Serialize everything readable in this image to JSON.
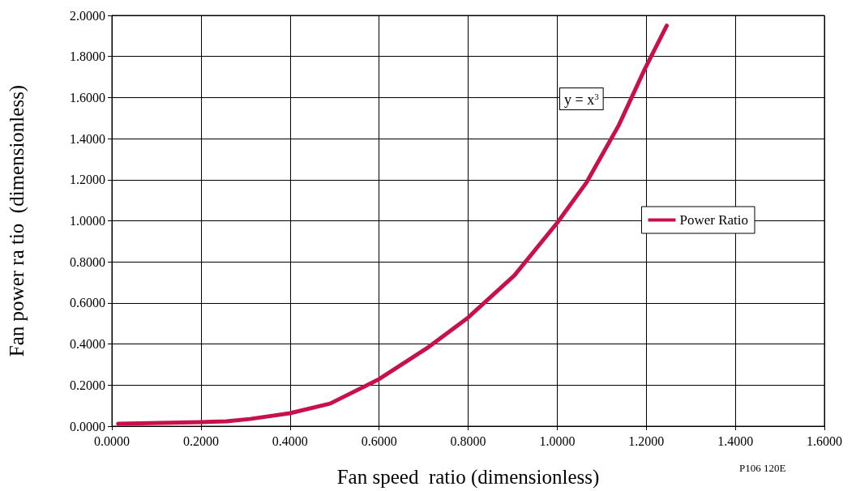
{
  "chart_data": {
    "type": "line",
    "xlabel": "Fan speed  ratio (dimensionless)",
    "ylabel": "Fan power ra tio  (dimensionless)",
    "annotations": [
      "y = x$^{3}$",
      "P106 120E"
    ],
    "series": [
      {
        "name": "Power Ratio",
        "color": "#c8104a",
        "x": [
          0.014,
          0.2,
          0.257,
          0.31,
          0.4,
          0.49,
          0.6,
          0.707,
          0.8,
          0.904,
          1.0,
          1.066,
          1.138,
          1.197,
          1.246
        ],
        "values": [
          0.012,
          0.02,
          0.024,
          0.035,
          0.063,
          0.11,
          0.229,
          0.379,
          0.529,
          0.734,
          0.99,
          1.187,
          1.464,
          1.74,
          1.95
        ]
      }
    ],
    "xlim": [
      0,
      1.6
    ],
    "xticks": [
      {
        "value": 0,
        "label": "0.0000"
      },
      {
        "value": 0.2,
        "label": "0.2000"
      },
      {
        "value": 0.4,
        "label": "0.4000"
      },
      {
        "value": 0.6,
        "label": "0.6000"
      },
      {
        "value": 0.8,
        "label": "0.8000"
      },
      {
        "value": 1.0,
        "label": "1.0000"
      },
      {
        "value": 1.2,
        "label": "1.2000"
      },
      {
        "value": 1.4,
        "label": "1.4000"
      },
      {
        "value": 1.6,
        "label": "1.6000"
      }
    ],
    "ylim": [
      0,
      2
    ],
    "yticks": [
      {
        "value": 0,
        "label": "0.0000"
      },
      {
        "value": 0.2,
        "label": "0.2000"
      },
      {
        "value": 0.4,
        "label": "0.4000"
      },
      {
        "value": 0.6,
        "label": "0.6000"
      },
      {
        "value": 0.8,
        "label": "0.8000"
      },
      {
        "value": 1.0,
        "label": "1.0000"
      },
      {
        "value": 1.2,
        "label": "1.2000"
      },
      {
        "value": 1.4,
        "label": "1.4000"
      },
      {
        "value": 1.6,
        "label": "1.6000"
      },
      {
        "value": 1.8,
        "label": "1.8000"
      },
      {
        "value": 2.0,
        "label": "2.0000"
      }
    ],
    "grid": true,
    "legend": "right",
    "marker": "none",
    "line_style": "solid"
  }
}
